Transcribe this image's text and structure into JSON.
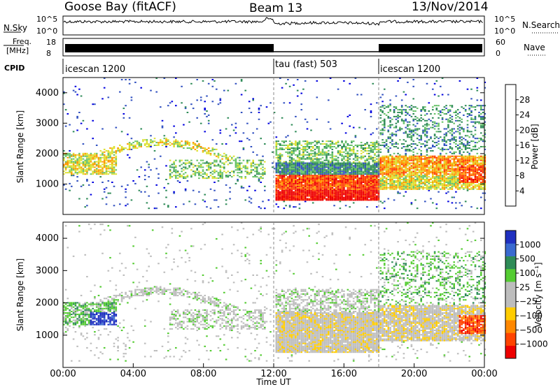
{
  "header": {
    "station": "Goose Bay (fitACF)",
    "beam": "Beam 13",
    "date": "13/Nov/2014"
  },
  "top_panels": {
    "nsky_label": "N.Sky",
    "nsky_ticks": [
      "10^5",
      "10^0"
    ],
    "nsearch_label": "N.Search",
    "nsearch_ticks": [
      "10^5",
      "10^0"
    ],
    "freq_label": "Freq.",
    "freq_unit": "[MHz]",
    "freq_ticks": [
      "18",
      "8"
    ],
    "nave_label": "Nave",
    "nave_ticks": [
      "60",
      "0"
    ],
    "cpid_label": "CPID",
    "modes": [
      {
        "name": "icescan 1200",
        "start_hour": 0
      },
      {
        "name": "tau (fast) 503",
        "start_hour": 12
      },
      {
        "name": "icescan 1200",
        "start_hour": 18
      }
    ]
  },
  "colors": {
    "power_scale": [
      "#0000e0",
      "#3050c0",
      "#2e8b57",
      "#66c266",
      "#dde030",
      "#ff9900",
      "#ff4000",
      "#ee0000"
    ],
    "velocity_scale": [
      "#2030c0",
      "#3a6ad0",
      "#2e8b57",
      "#55cc33",
      "#bdbdbd",
      "#bdbdbd",
      "#ffcc00",
      "#ff8800",
      "#ff4400",
      "#ee0000"
    ]
  },
  "chart_data": [
    {
      "type": "heatmap",
      "name": "power",
      "ylabel": "Slant Range [km]",
      "yticks": [
        "1000",
        "2000",
        "3000",
        "4000"
      ],
      "ylim": [
        0,
        4500
      ],
      "colorbar_label": "Power [dB]",
      "colorbar_ticks": [
        "4",
        "8",
        "12",
        "16",
        "20",
        "24",
        "28"
      ],
      "clim": [
        0,
        30
      ],
      "bands": [
        {
          "t0": 12.0,
          "t1": 18.0,
          "r0": 400,
          "r1": 1300,
          "v": 24
        },
        {
          "t0": 12.0,
          "t1": 18.0,
          "r0": 1300,
          "r1": 1700,
          "v": 10
        },
        {
          "t0": 18.0,
          "t1": 24.0,
          "r0": 800,
          "r1": 1800,
          "v": 17
        },
        {
          "t0": 6.0,
          "t1": 12.0,
          "r0": 1100,
          "r1": 1800,
          "v": 12
        },
        {
          "t0": 0.0,
          "t1": 3.0,
          "r0": 1300,
          "r1": 2000,
          "v": 14
        }
      ]
    },
    {
      "type": "heatmap",
      "name": "velocity",
      "ylabel": "Slant Range [km]",
      "yticks": [
        "1000",
        "2000",
        "3000",
        "4000"
      ],
      "ylim": [
        0,
        4500
      ],
      "colorbar_label": "Velocity [m s⁻¹]",
      "colorbar_ticks": [
        "1000",
        "500",
        "100",
        "25",
        "−25",
        "−100",
        "−500",
        "−1000"
      ],
      "xlabel": "Time UT",
      "xticks": [
        "00:00",
        "04:00",
        "08:00",
        "12:00",
        "16:00",
        "20:00",
        "00:00"
      ],
      "xlim_hours": [
        0,
        24
      ]
    }
  ]
}
